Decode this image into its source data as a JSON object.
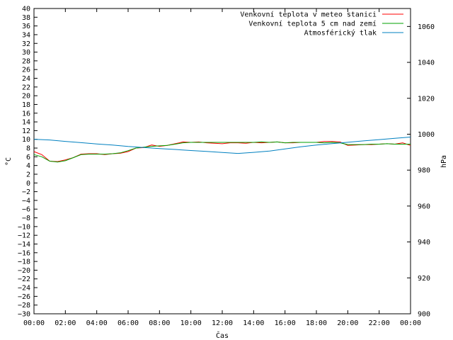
{
  "chart_data": {
    "type": "line",
    "xlabel": "Čas",
    "ylabel_left": "°C",
    "ylabel_right": "hPa",
    "ylim_left": [
      -30,
      40
    ],
    "ylim_right": [
      900,
      1070
    ],
    "xlim": [
      0,
      24
    ],
    "grid": false,
    "legend_placement": "top-right",
    "x_ticks": [
      "00:00",
      "02:00",
      "04:00",
      "06:00",
      "08:00",
      "10:00",
      "12:00",
      "14:00",
      "16:00",
      "18:00",
      "20:00",
      "22:00",
      "00:00"
    ],
    "y_ticks_left": [
      40,
      38,
      36,
      34,
      32,
      30,
      28,
      26,
      24,
      22,
      20,
      18,
      16,
      14,
      12,
      10,
      8,
      6,
      4,
      2,
      0,
      -2,
      -4,
      -6,
      -8,
      -10,
      -12,
      -14,
      -16,
      -18,
      -20,
      -22,
      -24,
      -26,
      -28,
      -30
    ],
    "y_ticks_right": [
      1060,
      1040,
      1020,
      1000,
      980,
      960,
      940,
      920,
      900
    ],
    "series": [
      {
        "name": "Venkovní teplota v meteo stanici",
        "axis": "left",
        "color": "#ff0000",
        "x": [
          0,
          0.5,
          1,
          1.5,
          2,
          2.5,
          3,
          3.5,
          4,
          4.5,
          5,
          5.5,
          6,
          6.5,
          7,
          7.5,
          8,
          8.5,
          9,
          9.5,
          10,
          10.5,
          11,
          11.5,
          12,
          12.5,
          13,
          13.5,
          14,
          14.5,
          15,
          15.5,
          16,
          16.5,
          17,
          17.5,
          18,
          18.5,
          19,
          19.5,
          20,
          20.5,
          21,
          21.5,
          22,
          22.5,
          23,
          23.5,
          24
        ],
        "values": [
          7.2,
          6.5,
          5.0,
          4.9,
          5.3,
          5.8,
          6.6,
          6.7,
          6.7,
          6.5,
          6.7,
          6.8,
          7.2,
          8.0,
          8.1,
          8.7,
          8.4,
          8.6,
          9.0,
          9.4,
          9.3,
          9.4,
          9.2,
          9.1,
          9.0,
          9.2,
          9.2,
          9.1,
          9.3,
          9.2,
          9.3,
          9.4,
          9.2,
          9.2,
          9.3,
          9.3,
          9.3,
          9.5,
          9.5,
          9.4,
          8.6,
          8.7,
          8.8,
          8.8,
          8.9,
          9.0,
          8.9,
          9.2,
          8.6
        ]
      },
      {
        "name": "Venkovní teplota 5 cm nad zemí",
        "axis": "left",
        "color": "#00a000",
        "x": [
          0,
          0.5,
          1,
          1.5,
          2,
          2.5,
          3,
          3.5,
          4,
          4.5,
          5,
          5.5,
          6,
          6.5,
          7,
          7.5,
          8,
          8.5,
          9,
          9.5,
          10,
          10.5,
          11,
          11.5,
          12,
          12.5,
          13,
          13.5,
          14,
          14.5,
          15,
          15.5,
          16,
          16.5,
          17,
          17.5,
          18,
          18.5,
          19,
          19.5,
          20,
          20.5,
          21,
          21.5,
          22,
          22.5,
          23,
          23.5,
          24
        ],
        "values": [
          6.5,
          6.0,
          5.0,
          4.8,
          5.1,
          5.8,
          6.5,
          6.6,
          6.6,
          6.6,
          6.7,
          6.9,
          7.4,
          8.0,
          8.2,
          8.4,
          8.5,
          8.6,
          8.9,
          9.2,
          9.3,
          9.3,
          9.3,
          9.3,
          9.3,
          9.3,
          9.3,
          9.3,
          9.3,
          9.4,
          9.3,
          9.4,
          9.2,
          9.3,
          9.3,
          9.3,
          9.3,
          9.2,
          9.3,
          9.2,
          8.8,
          8.8,
          8.8,
          8.9,
          8.9,
          9.0,
          8.9,
          8.9,
          8.9
        ]
      },
      {
        "name": "Atmosférický tlak",
        "axis": "right",
        "color": "#0080c0",
        "x": [
          0,
          1,
          2,
          3,
          4,
          5,
          6,
          7,
          8,
          9,
          10,
          11,
          12,
          13,
          14,
          15,
          16,
          17,
          18,
          19,
          20,
          21,
          22,
          23,
          24
        ],
        "values": [
          997.2,
          996.8,
          996.0,
          995.3,
          994.6,
          994.0,
          993.2,
          992.6,
          992.0,
          991.5,
          990.9,
          990.4,
          989.8,
          989.3,
          989.9,
          990.6,
          991.8,
          993.0,
          994.0,
          994.8,
          995.5,
          996.3,
          997.0,
          997.7,
          998.4
        ]
      }
    ]
  }
}
